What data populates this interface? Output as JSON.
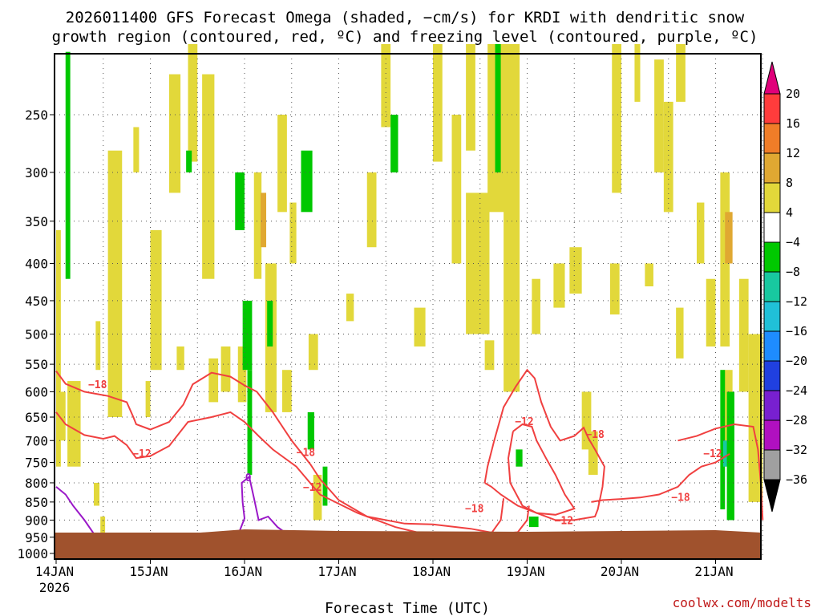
{
  "chart_data": {
    "type": "heatmap",
    "title_lines": [
      "2026011400 GFS Forecast Omega (shaded, −cm/s) for KRDI with dendritic snow",
      "growth region (contoured, red, ºC) and freezing level (contoured, purple, ºC)"
    ],
    "xlabel": "Forecast Time (UTC)",
    "credit": "coolwx.com/modelts",
    "x_ticks": [
      {
        "label": "14JAN",
        "sub": "2026",
        "day": 0
      },
      {
        "label": "15JAN",
        "sub": "",
        "day": 1
      },
      {
        "label": "16JAN",
        "sub": "",
        "day": 2
      },
      {
        "label": "17JAN",
        "sub": "",
        "day": 3
      },
      {
        "label": "18JAN",
        "sub": "",
        "day": 4
      },
      {
        "label": "19JAN",
        "sub": "",
        "day": 5
      },
      {
        "label": "20JAN",
        "sub": "",
        "day": 6
      },
      {
        "label": "21JAN",
        "sub": "",
        "day": 7
      }
    ],
    "x_range_days": [
      0,
      7.5
    ],
    "y_ticks": [
      250,
      300,
      350,
      400,
      450,
      500,
      550,
      600,
      650,
      700,
      750,
      800,
      850,
      900,
      950,
      1000
    ],
    "y_range_hpa": [
      200,
      1050
    ],
    "grid": true,
    "colorbar": {
      "labels": [
        "20",
        "16",
        "12",
        "8",
        "4",
        "−4",
        "−8",
        "−12",
        "−16",
        "−20",
        "−24",
        "−28",
        "−32",
        "−36"
      ],
      "bins": [
        {
          "range": ">20",
          "color": "#e0007a"
        },
        {
          "range": "16-20",
          "color": "#ff3c3c"
        },
        {
          "range": "12-16",
          "color": "#f07d28"
        },
        {
          "range": "8-12",
          "color": "#e0a832"
        },
        {
          "range": "4-8",
          "color": "#e2d83a"
        },
        {
          "range": "-4-4",
          "color": "#ffffff"
        },
        {
          "range": "-8--4",
          "color": "#00c800"
        },
        {
          "range": "-12--8",
          "color": "#18c8a0"
        },
        {
          "range": "-16--12",
          "color": "#20c0d8"
        },
        {
          "range": "-20--16",
          "color": "#1e8cff"
        },
        {
          "range": "-24--20",
          "color": "#2040e0"
        },
        {
          "range": "-28--24",
          "color": "#7820d0"
        },
        {
          "range": "-32--28",
          "color": "#b010c0"
        },
        {
          "range": "-36--32",
          "color": "#a0a0a0"
        },
        {
          "range": "<-36",
          "color": "#000000"
        }
      ]
    },
    "ground_color": "#a0522d",
    "contours": {
      "dgz": {
        "color": "#f04040",
        "labels": [
          {
            "text": "−18",
            "day": 0.44,
            "hpa": 587
          },
          {
            "text": "−12",
            "day": 0.91,
            "hpa": 730
          },
          {
            "text": "−18",
            "day": 2.65,
            "hpa": 728
          },
          {
            "text": "−12",
            "day": 2.72,
            "hpa": 812
          },
          {
            "text": "−18",
            "day": 4.44,
            "hpa": 869
          },
          {
            "text": "−12",
            "day": 4.97,
            "hpa": 660
          },
          {
            "text": "−18",
            "day": 5.72,
            "hpa": 687
          },
          {
            "text": "−12",
            "day": 5.39,
            "hpa": 902
          },
          {
            "text": "−18",
            "day": 6.63,
            "hpa": 839
          },
          {
            "text": "−12",
            "day": 6.97,
            "hpa": 730
          }
        ]
      },
      "freezing": {
        "color": "#9a18c8",
        "labels": [
          {
            "text": "0",
            "day": 2.04,
            "hpa": 788
          }
        ]
      }
    }
  }
}
